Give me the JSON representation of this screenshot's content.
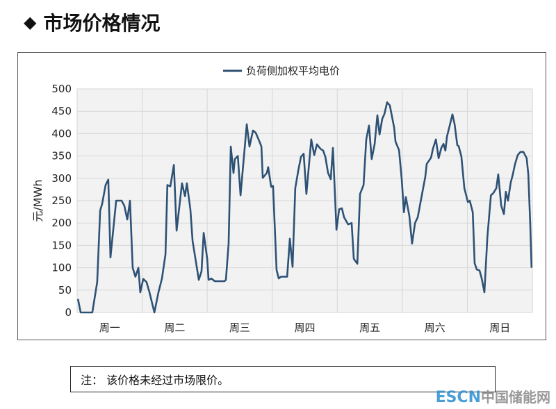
{
  "title": "市场价格情况",
  "title_bullet": "diamond",
  "note": "注： 该价格未经过市场限价。",
  "watermark": {
    "latin": "ESCN",
    "cn": "中国储能网"
  },
  "chart_data": {
    "type": "line",
    "title": "",
    "xlabel": "",
    "ylabel": "元/MWh",
    "ylim": [
      0,
      500
    ],
    "yticks": [
      0,
      50,
      100,
      150,
      200,
      250,
      300,
      350,
      400,
      450,
      500
    ],
    "xlim": [
      0,
      168
    ],
    "categories": [
      "周一",
      "周二",
      "周三",
      "周四",
      "周五",
      "周六",
      "周日"
    ],
    "grid": true,
    "legend": "top",
    "color": "#2e5275",
    "series": [
      {
        "name": "负荷侧加权平均电价",
        "points": [
          [
            0.3,
            30
          ],
          [
            1.3,
            0
          ],
          [
            5.6,
            0
          ],
          [
            7.4,
            68
          ],
          [
            8.5,
            228
          ],
          [
            9.2,
            242
          ],
          [
            10.5,
            285
          ],
          [
            11.5,
            297
          ],
          [
            12.3,
            123
          ],
          [
            14.4,
            250
          ],
          [
            16.4,
            250
          ],
          [
            17.4,
            239
          ],
          [
            18.5,
            208
          ],
          [
            19.5,
            250
          ],
          [
            20.5,
            100
          ],
          [
            21.5,
            80
          ],
          [
            22.6,
            100
          ],
          [
            23.3,
            45
          ],
          [
            24.4,
            75
          ],
          [
            25.6,
            68
          ],
          [
            26.7,
            45
          ],
          [
            28.5,
            0
          ],
          [
            30,
            45
          ],
          [
            31.3,
            76
          ],
          [
            32.6,
            130
          ],
          [
            33.3,
            285
          ],
          [
            34.4,
            282
          ],
          [
            35.7,
            330
          ],
          [
            36.7,
            183
          ],
          [
            38.7,
            289
          ],
          [
            39.8,
            260
          ],
          [
            40.5,
            289
          ],
          [
            41.8,
            230
          ],
          [
            42.6,
            160
          ],
          [
            44.9,
            73
          ],
          [
            45.9,
            92
          ],
          [
            46.7,
            178
          ],
          [
            48,
            120
          ],
          [
            48.5,
            73
          ],
          [
            49.5,
            76
          ],
          [
            50.8,
            70
          ],
          [
            54.4,
            70
          ],
          [
            54.9,
            73
          ],
          [
            55.9,
            154
          ],
          [
            56.7,
            371
          ],
          [
            57.7,
            312
          ],
          [
            58.2,
            343
          ],
          [
            59.3,
            350
          ],
          [
            60.3,
            262
          ],
          [
            62.6,
            421
          ],
          [
            63.6,
            371
          ],
          [
            64.9,
            407
          ],
          [
            65.9,
            402
          ],
          [
            67.5,
            379
          ],
          [
            68,
            371
          ],
          [
            68.5,
            301
          ],
          [
            70,
            312
          ],
          [
            70.5,
            325
          ],
          [
            71.6,
            281
          ],
          [
            72.3,
            283
          ],
          [
            73.6,
            95
          ],
          [
            74.4,
            76
          ],
          [
            75.2,
            80
          ],
          [
            77.5,
            80
          ],
          [
            78.5,
            165
          ],
          [
            79.5,
            102
          ],
          [
            80.5,
            278
          ],
          [
            81.6,
            317
          ],
          [
            82.6,
            348
          ],
          [
            83.6,
            355
          ],
          [
            84.6,
            265
          ],
          [
            86.4,
            387
          ],
          [
            87.5,
            352
          ],
          [
            88.5,
            376
          ],
          [
            89.8,
            366
          ],
          [
            90.8,
            362
          ],
          [
            91.6,
            348
          ],
          [
            92.6,
            312
          ],
          [
            93.6,
            298
          ],
          [
            94.4,
            368
          ],
          [
            95.7,
            185
          ],
          [
            96.7,
            231
          ],
          [
            97.7,
            233
          ],
          [
            98.5,
            213
          ],
          [
            100,
            197
          ],
          [
            101.3,
            200
          ],
          [
            102.1,
            120
          ],
          [
            103.4,
            109
          ],
          [
            104.4,
            265
          ],
          [
            105.7,
            285
          ],
          [
            106.7,
            387
          ],
          [
            107.7,
            418
          ],
          [
            108.7,
            343
          ],
          [
            109.8,
            377
          ],
          [
            110.8,
            441
          ],
          [
            111.6,
            398
          ],
          [
            112.6,
            433
          ],
          [
            113.4,
            444
          ],
          [
            114.4,
            470
          ],
          [
            115.4,
            463
          ],
          [
            117,
            413
          ],
          [
            117.5,
            382
          ],
          [
            118.8,
            363
          ],
          [
            119.8,
            297
          ],
          [
            120.6,
            224
          ],
          [
            121.3,
            258
          ],
          [
            122.6,
            216
          ],
          [
            123.6,
            154
          ],
          [
            124.7,
            200
          ],
          [
            125.7,
            213
          ],
          [
            127.2,
            262
          ],
          [
            128.5,
            304
          ],
          [
            129,
            332
          ],
          [
            130.6,
            346
          ],
          [
            131.3,
            366
          ],
          [
            132.4,
            387
          ],
          [
            133.4,
            345
          ],
          [
            134.4,
            368
          ],
          [
            135.2,
            377
          ],
          [
            135.9,
            362
          ],
          [
            136.5,
            394
          ],
          [
            137.5,
            418
          ],
          [
            138.5,
            443
          ],
          [
            139.3,
            421
          ],
          [
            140.3,
            374
          ],
          [
            140.8,
            372
          ],
          [
            141.8,
            349
          ],
          [
            142.9,
            278
          ],
          [
            144.2,
            247
          ],
          [
            144.9,
            250
          ],
          [
            146,
            224
          ],
          [
            146.7,
            110
          ],
          [
            147.5,
            96
          ],
          [
            148.5,
            94
          ],
          [
            149.3,
            76
          ],
          [
            150.3,
            45
          ],
          [
            151.4,
            169
          ],
          [
            152.7,
            262
          ],
          [
            153.6,
            267
          ],
          [
            154.7,
            278
          ],
          [
            155.4,
            309
          ],
          [
            156.5,
            239
          ],
          [
            157.5,
            220
          ],
          [
            158.2,
            270
          ],
          [
            159,
            250
          ],
          [
            160,
            290
          ],
          [
            160.8,
            309
          ],
          [
            161.6,
            332
          ],
          [
            162.6,
            352
          ],
          [
            163.6,
            359
          ],
          [
            164.7,
            359
          ],
          [
            165.9,
            345
          ],
          [
            166.5,
            309
          ],
          [
            167.2,
            200
          ],
          [
            167.7,
            100
          ]
        ]
      }
    ]
  }
}
